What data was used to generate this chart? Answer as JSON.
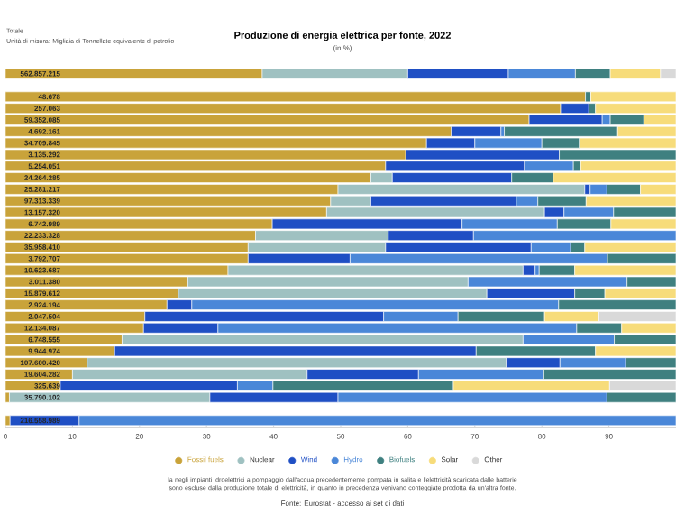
{
  "chart_data": {
    "type": "bar",
    "orientation": "horizontal",
    "stacked": true,
    "title": "Produzione di energia elettrica per fonte, 2022",
    "subtitle": "(in %)",
    "annotations": [
      "Totale",
      "Unità di misura: Migliaia di Tonnellate equivalente di petrolio",
      "la negli impianti idroelettrici a pompaggio dall'acqua precedentemente pompata in salita e l'elettricità scaricata dalle batterie sono escluse dalla produzione totale di elettricità, in quanto in precedenza venivano conteggiate prodotta da un'altra fonte.",
      "Fonte: Eurostat - accesso ai set di dati"
    ],
    "categories": [
      "562.857.215",
      null,
      "48.678",
      "257.063",
      "59.352.085",
      "4.692.161",
      "34.709.845",
      "3.135.292",
      "5.254.051",
      "24.264.285",
      "25.281.217",
      "97.313.339",
      "13.157.320",
      "6.742.989",
      "22.233.328",
      "35.958.410",
      "3.792.707",
      "10.623.687",
      "3.011.380",
      "15.879.612",
      "2.924.194",
      "2.047.504",
      "12.134.087",
      "6.748.555",
      "9.944.974",
      "107.600.420",
      "19.604.282",
      "325.639",
      "35.790.102",
      null,
      "216.558.989"
    ],
    "xlim": [
      0,
      100
    ],
    "xticks": [
      0,
      10,
      20,
      30,
      40,
      50,
      60,
      70,
      80,
      90
    ],
    "legend": "bottom",
    "grid": false,
    "series": [
      {
        "name": "Fossil fuels",
        "color": "#c9a33a",
        "values": [
          38.3,
          null,
          86.5,
          82.8,
          78.1,
          66.5,
          62.8,
          59.7,
          56.7,
          54.5,
          49.6,
          48.5,
          47.9,
          39.8,
          37.3,
          36.2,
          36.2,
          33.2,
          27.2,
          25.8,
          24.1,
          20.8,
          20.6,
          17.4,
          16.3,
          12.2,
          10.0,
          8.2,
          0.6,
          null,
          0.7
        ]
      },
      {
        "name": "Nuclear",
        "color": "#9fc1c1",
        "values": [
          21.7,
          null,
          null,
          null,
          null,
          null,
          null,
          null,
          null,
          3.2,
          36.8,
          6.0,
          32.5,
          null,
          19.8,
          20.5,
          null,
          44.0,
          41.8,
          46.0,
          null,
          null,
          null,
          59.8,
          null,
          62.5,
          35.0,
          null,
          29.9,
          null,
          null
        ]
      },
      {
        "name": "Wind",
        "color": "#1f4fc4",
        "values": [
          15.0,
          null,
          null,
          4.2,
          10.9,
          7.4,
          7.2,
          22.9,
          20.7,
          17.8,
          0.8,
          21.7,
          2.9,
          28.3,
          12.7,
          21.7,
          15.2,
          1.8,
          null,
          13.1,
          3.7,
          35.6,
          11.1,
          null,
          53.9,
          8.0,
          16.6,
          26.4,
          19.1,
          null,
          10.3
        ]
      },
      {
        "name": "Hydro",
        "color": "#4a87d8",
        "values": [
          10.0,
          null,
          null,
          null,
          1.2,
          0.5,
          10.0,
          null,
          7.3,
          null,
          2.5,
          3.2,
          7.4,
          14.2,
          30.2,
          5.9,
          38.4,
          0.6,
          23.7,
          null,
          54.7,
          11.1,
          53.5,
          13.6,
          null,
          9.8,
          18.7,
          5.3,
          40.1,
          null,
          89.0
        ]
      },
      {
        "name": "Biofuels",
        "color": "#3f8080",
        "values": [
          5.2,
          null,
          0.8,
          1.0,
          5.0,
          16.9,
          5.6,
          17.4,
          1.1,
          6.2,
          5.0,
          7.2,
          9.3,
          8.0,
          null,
          2.1,
          10.2,
          5.3,
          7.3,
          4.5,
          17.5,
          12.9,
          6.7,
          9.2,
          17.8,
          7.5,
          19.7,
          26.9,
          10.3,
          null,
          null
        ]
      },
      {
        "name": "Solar",
        "color": "#f7dc7a",
        "values": [
          7.5,
          null,
          12.7,
          12.0,
          4.8,
          8.7,
          14.4,
          null,
          14.2,
          18.3,
          5.3,
          13.4,
          null,
          9.7,
          null,
          13.6,
          null,
          15.1,
          null,
          10.6,
          null,
          8.1,
          8.1,
          null,
          12.0,
          null,
          null,
          23.3,
          null,
          null,
          null
        ]
      },
      {
        "name": "Other",
        "color": "#d9d9d9",
        "values": [
          2.3,
          null,
          null,
          null,
          null,
          null,
          null,
          null,
          null,
          null,
          null,
          null,
          null,
          null,
          null,
          null,
          null,
          null,
          null,
          null,
          null,
          11.5,
          null,
          null,
          null,
          null,
          null,
          9.9,
          null,
          null,
          null
        ]
      }
    ]
  }
}
